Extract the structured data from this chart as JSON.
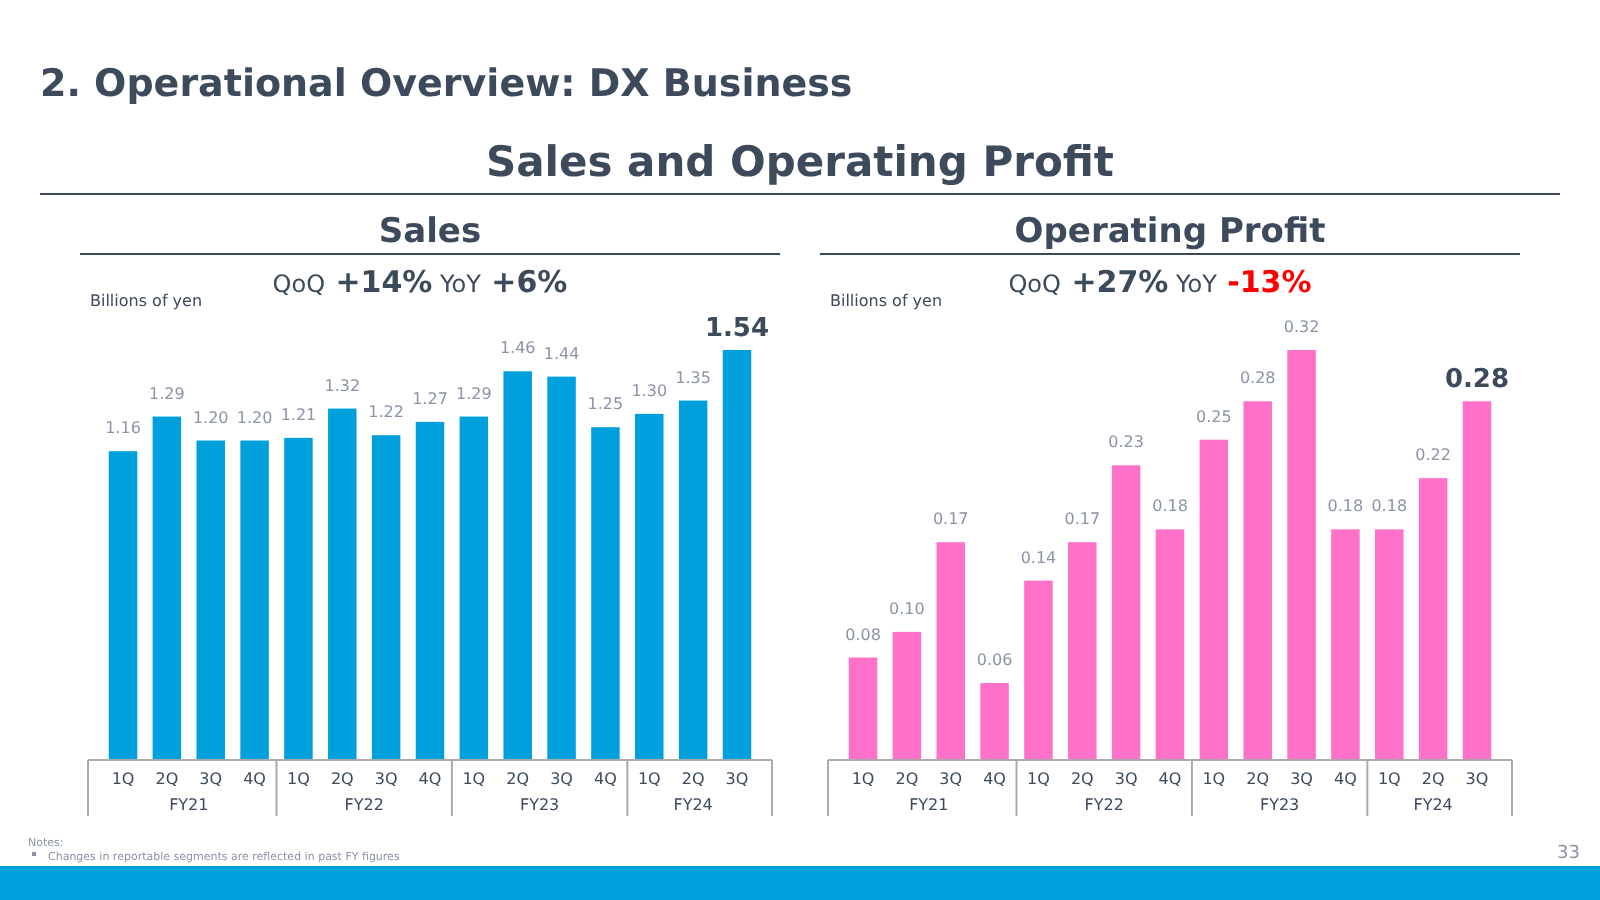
{
  "chart_data": [
    {
      "type": "bar",
      "title": "Sales",
      "subtitle": "QoQ +14% YoY +6%",
      "ylabel": "Billions of yen",
      "categories": [
        "1Q",
        "2Q",
        "3Q",
        "4Q",
        "1Q",
        "2Q",
        "3Q",
        "4Q",
        "1Q",
        "2Q",
        "3Q",
        "4Q",
        "1Q",
        "2Q",
        "3Q"
      ],
      "values": [
        1.16,
        1.29,
        1.2,
        1.2,
        1.21,
        1.32,
        1.22,
        1.27,
        1.29,
        1.46,
        1.44,
        1.25,
        1.3,
        1.35,
        1.54
      ],
      "color": "#00a0dc",
      "value_labels": [
        "1.16",
        "1.29",
        "1.20",
        "1.20",
        "1.21",
        "1.32",
        "1.22",
        "1.27",
        "1.29",
        "1.46",
        "1.44",
        "1.25",
        "1.30",
        "1.35",
        "1.54"
      ],
      "annotations": [
        "FY21",
        "FY22",
        "FY23",
        "FY24"
      ]
    },
    {
      "type": "bar",
      "title": "Operating Profit",
      "subtitle": "QoQ +27% YoY -13%",
      "ylabel": "Billions of yen",
      "categories": [
        "1Q",
        "2Q",
        "3Q",
        "4Q",
        "1Q",
        "2Q",
        "3Q",
        "4Q",
        "1Q",
        "2Q",
        "3Q",
        "4Q",
        "1Q",
        "2Q",
        "3Q"
      ],
      "values": [
        0.08,
        0.1,
        0.17,
        0.06,
        0.14,
        0.17,
        0.23,
        0.18,
        0.25,
        0.28,
        0.32,
        0.18,
        0.18,
        0.22,
        0.28
      ],
      "color": "#ff70c8",
      "value_labels": [
        "0.08",
        "0.10",
        "0.17",
        "0.06",
        "0.14",
        "0.17",
        "0.23",
        "0.18",
        "0.25",
        "0.28",
        "0.32",
        "0.18",
        "0.18",
        "0.22",
        "0.28"
      ],
      "annotations": [
        "FY21",
        "FY22",
        "FY23",
        "FY24"
      ]
    },
    {
      "type": "other",
      "title": "2. Operational Overview: DX Business",
      "subtitle": "Sales and Operating Profit",
      "annotations": [
        "Notes:",
        "Changes in reportable segments are reflected in past FY figures",
        "33"
      ]
    }
  ]
}
